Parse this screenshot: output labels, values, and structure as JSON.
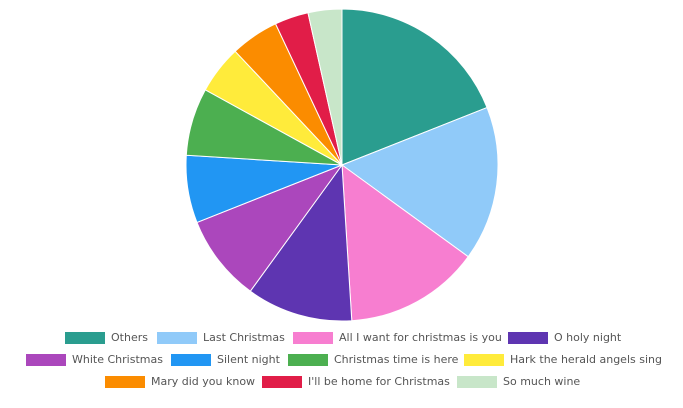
{
  "chart_data": {
    "type": "pie",
    "title": "",
    "legend_position": "bottom",
    "start_angle": "top (12 o'clock), clockwise",
    "series": [
      {
        "name": "",
        "labels": [
          "Others",
          "Last Christmas",
          "All I want for christmas is you",
          "O holy night",
          "White Christmas",
          "Silent night",
          "Christmas time is here",
          "Hark the herald angels sing",
          "Mary did you know",
          "I'll be home for Christmas",
          "So much wine"
        ],
        "values": [
          19,
          16,
          14,
          11,
          9,
          7,
          7,
          5,
          5,
          3.5,
          3.5
        ],
        "colors": [
          "#2a9d8f",
          "#90caf9",
          "#f77ed0",
          "#5e35b1",
          "#ab47bc",
          "#2196f3",
          "#4caf50",
          "#ffeb3b",
          "#fb8c00",
          "#e11d48",
          "#c8e6c9"
        ]
      }
    ]
  }
}
